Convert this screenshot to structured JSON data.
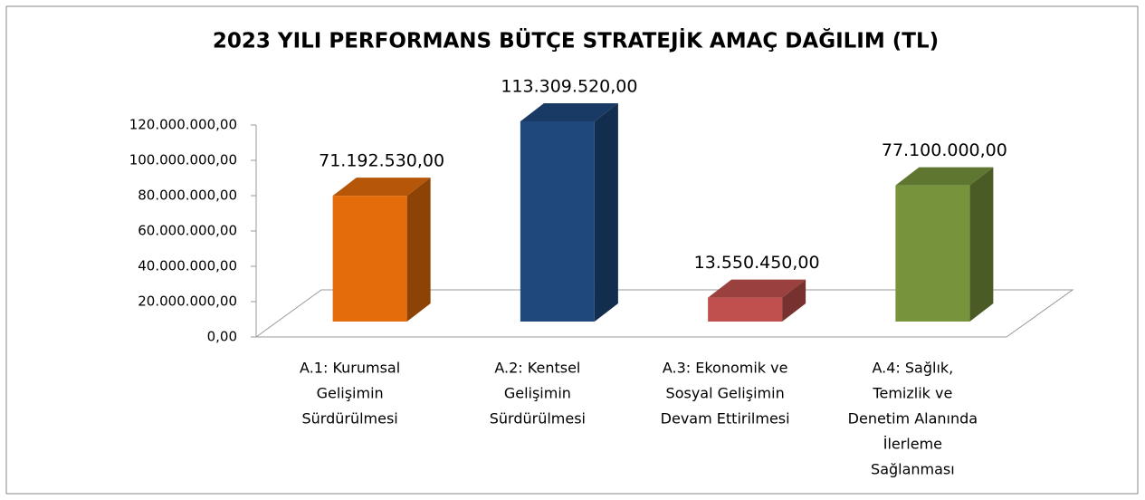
{
  "chart_data": {
    "type": "bar3d",
    "title": "2023 YILI PERFORMANS BÜTÇE STRATEJİK AMAÇ DAĞILIM (TL)",
    "categories": [
      [
        "A.1:  Kurumsal",
        "Gelişimin",
        "Sürdürülmesi"
      ],
      [
        "A.2: Kentsel",
        "Gelişimin",
        "Sürdürülmesi"
      ],
      [
        "A.3: Ekonomik ve",
        "Sosyal Gelişimin",
        "Devam Ettirilmesi"
      ],
      [
        "A.4: Sağlık,",
        "Temizlik ve",
        "Denetim Alanında",
        "İlerleme",
        "Sağlanması"
      ]
    ],
    "values": [
      71192530,
      113309520,
      13550450,
      77100000
    ],
    "value_labels": [
      "71.192.530,00",
      "113.309.520,00",
      "13.550.450,00",
      "77.100.000,00"
    ],
    "colors": [
      "#e46c0a",
      "#1f497d",
      "#c0504d",
      "#77933c"
    ],
    "ylim": [
      0,
      120000000
    ],
    "yticks": [
      {
        "value": 0,
        "label": "0,00"
      },
      {
        "value": 20000000,
        "label": "20.000.000,00"
      },
      {
        "value": 40000000,
        "label": "40.000.000,00"
      },
      {
        "value": 60000000,
        "label": "60.000.000,00"
      },
      {
        "value": 80000000,
        "label": "80.000.000,00"
      },
      {
        "value": 100000000,
        "label": "100.000.000,00"
      },
      {
        "value": 120000000,
        "label": "120.000.000,00"
      }
    ]
  }
}
